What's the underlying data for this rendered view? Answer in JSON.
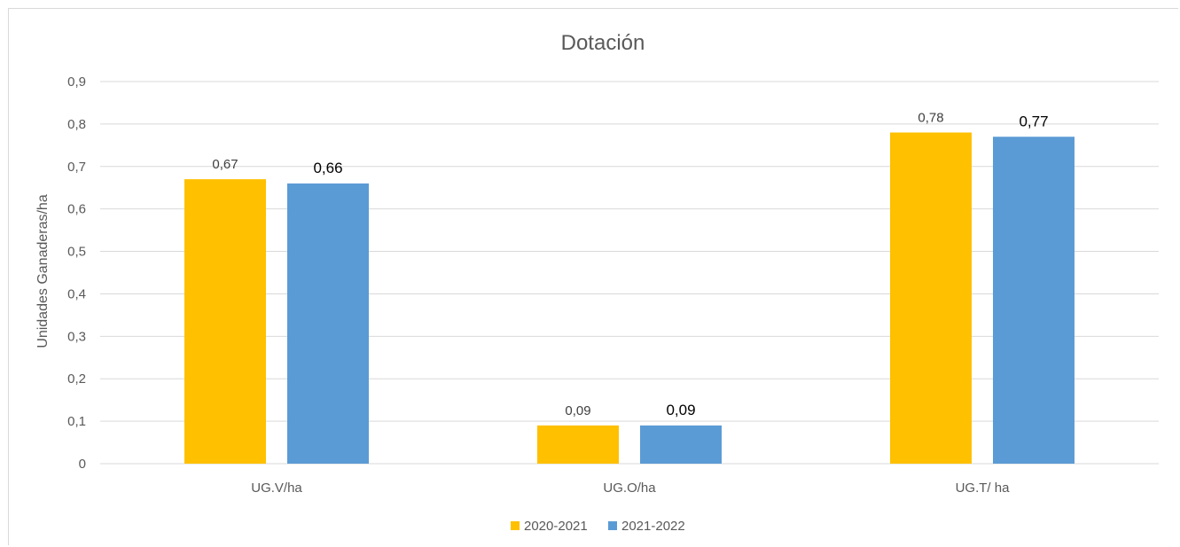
{
  "chart_data": {
    "type": "bar",
    "title": "Dotación",
    "xlabel": "",
    "ylabel": "Unidades Ganaderas/ha",
    "categories": [
      "UG.V/ha",
      "UG.O/ha",
      "UG.T/ ha"
    ],
    "series": [
      {
        "name": "2020-2021",
        "values": [
          0.67,
          0.09,
          0.78
        ],
        "labels": [
          "0,67",
          "0,09",
          "0,78"
        ],
        "color": "#ffc000"
      },
      {
        "name": "2021-2022",
        "values": [
          0.66,
          0.09,
          0.77
        ],
        "labels": [
          "0,66",
          "0,09",
          "0,77"
        ],
        "color": "#5b9bd5"
      }
    ],
    "ylim": [
      0,
      0.9
    ],
    "yticks": [
      "0",
      "0,1",
      "0,2",
      "0,3",
      "0,4",
      "0,5",
      "0,6",
      "0,7",
      "0,8",
      "0,9"
    ],
    "grid": true,
    "legend_position": "bottom"
  }
}
